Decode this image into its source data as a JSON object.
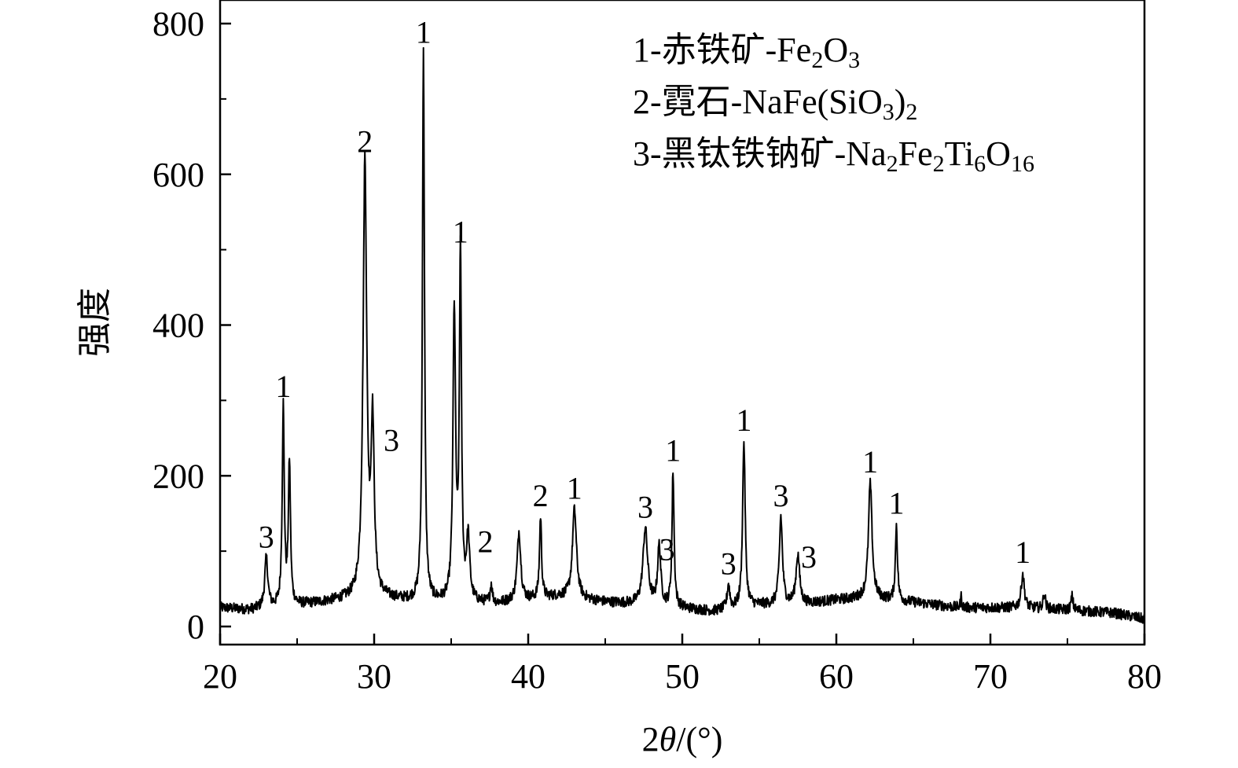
{
  "chart_data": {
    "type": "line",
    "xlabel_prefix": "2",
    "xlabel_theta": "θ",
    "xlabel_suffix": "/(°)",
    "ylabel": "强度",
    "xlim": [
      20,
      80
    ],
    "ylim": [
      0,
      800
    ],
    "x_ticks": [
      20,
      30,
      40,
      50,
      60,
      70,
      80
    ],
    "y_ticks": [
      0,
      200,
      400,
      600,
      800
    ],
    "grid": false,
    "legend_position": "top-right",
    "legend": [
      {
        "parts": [
          {
            "t": "1-赤铁矿-Fe"
          },
          {
            "t": "2",
            "sub": true
          },
          {
            "t": "O"
          },
          {
            "t": "3",
            "sub": true
          }
        ]
      },
      {
        "parts": [
          {
            "t": "2-霓石-NaFe(SiO"
          },
          {
            "t": "3",
            "sub": true
          },
          {
            "t": ")"
          },
          {
            "t": "2",
            "sub": true
          }
        ]
      },
      {
        "parts": [
          {
            "t": "3-黑钛铁钠矿-Na"
          },
          {
            "t": "2",
            "sub": true
          },
          {
            "t": "Fe"
          },
          {
            "t": "2",
            "sub": true
          },
          {
            "t": "Ti"
          },
          {
            "t": "6",
            "sub": true
          },
          {
            "t": "O"
          },
          {
            "t": "16",
            "sub": true
          }
        ]
      }
    ],
    "baseline": [
      [
        20,
        25
      ],
      [
        22,
        22
      ],
      [
        25,
        28
      ],
      [
        28,
        35
      ],
      [
        30,
        38
      ],
      [
        33,
        32
      ],
      [
        38,
        30
      ],
      [
        42,
        40
      ],
      [
        45,
        32
      ],
      [
        48,
        28
      ],
      [
        52,
        20
      ],
      [
        55,
        28
      ],
      [
        58,
        30
      ],
      [
        60,
        35
      ],
      [
        62,
        38
      ],
      [
        65,
        32
      ],
      [
        68,
        25
      ],
      [
        72,
        25
      ],
      [
        75,
        22
      ],
      [
        78,
        18
      ],
      [
        80,
        10
      ]
    ],
    "peaks": [
      {
        "x": 23.0,
        "y": 90,
        "w": 0.12,
        "label": "3"
      },
      {
        "x": 24.1,
        "y": 290,
        "w": 0.08,
        "label": "1"
      },
      {
        "x": 24.5,
        "y": 215,
        "w": 0.08,
        "label": ""
      },
      {
        "x": 29.4,
        "y": 615,
        "w": 0.14,
        "label": "2"
      },
      {
        "x": 29.9,
        "y": 260,
        "w": 0.12,
        "label": "3"
      },
      {
        "x": 33.2,
        "y": 760,
        "w": 0.08,
        "label": "1"
      },
      {
        "x": 35.2,
        "y": 415,
        "w": 0.1,
        "label": ""
      },
      {
        "x": 35.6,
        "y": 495,
        "w": 0.08,
        "label": "1"
      },
      {
        "x": 36.1,
        "y": 115,
        "w": 0.12,
        "label": "2"
      },
      {
        "x": 37.6,
        "y": 55,
        "w": 0.08,
        "label": ""
      },
      {
        "x": 39.4,
        "y": 125,
        "w": 0.14,
        "label": ""
      },
      {
        "x": 40.8,
        "y": 145,
        "w": 0.08,
        "label": "2"
      },
      {
        "x": 43.0,
        "y": 155,
        "w": 0.16,
        "label": "1"
      },
      {
        "x": 47.6,
        "y": 130,
        "w": 0.18,
        "label": "3"
      },
      {
        "x": 48.5,
        "y": 105,
        "w": 0.12,
        "label": "3"
      },
      {
        "x": 49.4,
        "y": 205,
        "w": 0.08,
        "label": "1"
      },
      {
        "x": 53.0,
        "y": 55,
        "w": 0.1,
        "label": "3"
      },
      {
        "x": 54.0,
        "y": 245,
        "w": 0.1,
        "label": "1"
      },
      {
        "x": 56.4,
        "y": 145,
        "w": 0.12,
        "label": "3"
      },
      {
        "x": 57.5,
        "y": 95,
        "w": 0.14,
        "label": "3"
      },
      {
        "x": 62.2,
        "y": 190,
        "w": 0.14,
        "label": "1"
      },
      {
        "x": 63.9,
        "y": 135,
        "w": 0.08,
        "label": "1"
      },
      {
        "x": 68.1,
        "y": 40,
        "w": 0.05,
        "label": ""
      },
      {
        "x": 72.1,
        "y": 70,
        "w": 0.12,
        "label": "1"
      },
      {
        "x": 73.5,
        "y": 45,
        "w": 0.08,
        "label": ""
      },
      {
        "x": 75.3,
        "y": 40,
        "w": 0.08,
        "label": ""
      }
    ]
  }
}
